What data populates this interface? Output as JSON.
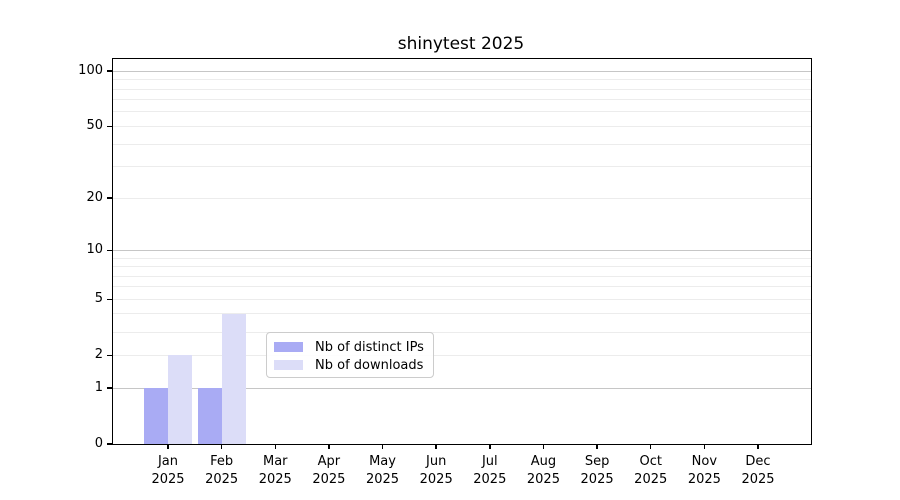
{
  "chart_data": {
    "type": "bar",
    "title": "shinytest 2025",
    "scale": "log1p",
    "grid": "on",
    "legend_position": "lower center",
    "months": [
      "Jan",
      "Feb",
      "Mar",
      "Apr",
      "May",
      "Jun",
      "Jul",
      "Aug",
      "Sep",
      "Oct",
      "Nov",
      "Dec"
    ],
    "year": "2025",
    "series": [
      {
        "name": "Nb of distinct IPs",
        "color": "#a9abf4",
        "values": [
          1,
          1,
          0,
          0,
          0,
          0,
          0,
          0,
          0,
          0,
          0,
          0
        ]
      },
      {
        "name": "Nb of downloads",
        "color": "#dcddf8",
        "values": [
          2,
          4,
          0,
          0,
          0,
          0,
          0,
          0,
          0,
          0,
          0,
          0
        ]
      }
    ],
    "y_tick_labels": [
      "100",
      "50",
      "20",
      "10",
      "5",
      "2",
      "1",
      "0"
    ],
    "y_tick_values": [
      100,
      50,
      20,
      10,
      5,
      2,
      1,
      0
    ],
    "y_major_grid": [
      1,
      10,
      100
    ],
    "y_minor_grid": [
      2,
      3,
      4,
      5,
      6,
      7,
      8,
      9,
      20,
      30,
      40,
      50,
      60,
      70,
      80,
      90
    ],
    "ylim": [
      0,
      110
    ]
  },
  "colors": {
    "background": "#ffffff",
    "axis": "#000000",
    "major_grid": "#c6c6c6",
    "minor_grid": "#ececec",
    "legend_border": "#cccccc",
    "text": "#000000"
  }
}
